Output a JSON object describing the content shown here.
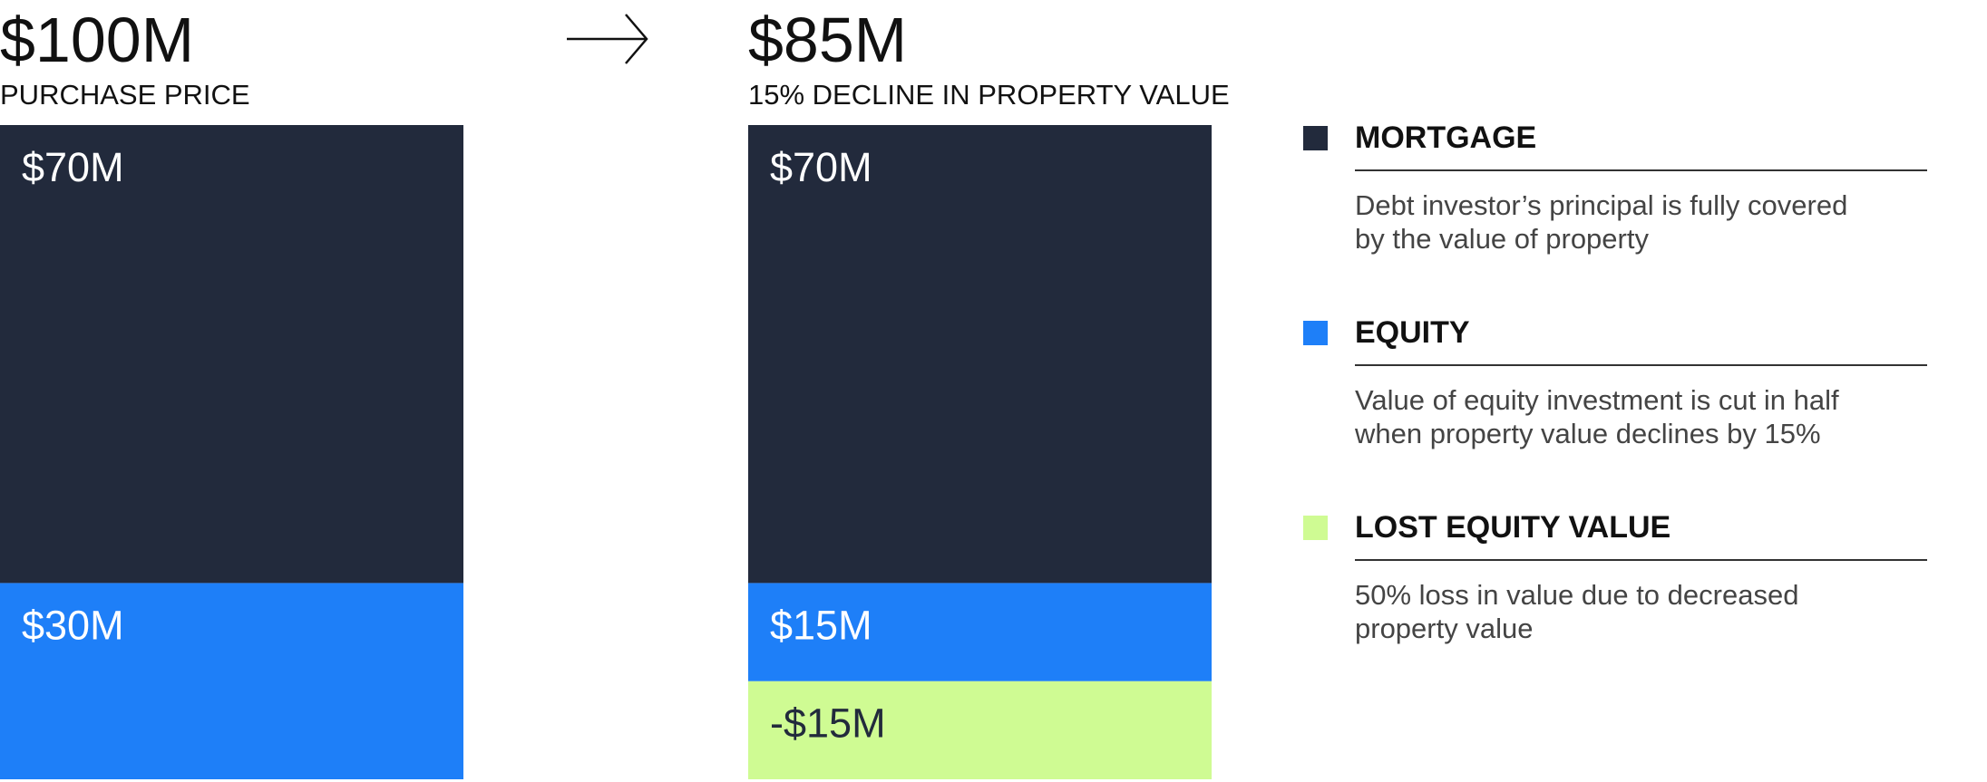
{
  "chart_data": {
    "type": "stacked_bar",
    "categories": [
      "$100M",
      "$85M"
    ],
    "category_subtitles": [
      "PURCHASE PRICE",
      "15% DECLINE IN PROPERTY VALUE"
    ],
    "series": [
      {
        "name": "MORTGAGE",
        "color": "#222a3c",
        "values": [
          70,
          70
        ],
        "value_labels": [
          "$70M",
          "$70M"
        ],
        "description": [
          "Debt investor’s principal is fully covered",
          "by the value of property"
        ]
      },
      {
        "name": "EQUITY",
        "color": "#1e7ff8",
        "values": [
          30,
          15
        ],
        "value_labels": [
          "$30M",
          "$15M"
        ],
        "description": [
          "Value of equity investment is cut in half",
          "when property value declines by 15%"
        ]
      },
      {
        "name": "LOST EQUITY VALUE",
        "color": "#cffb93",
        "values": [
          null,
          -15
        ],
        "value_labels": [
          null,
          "-$15M"
        ],
        "description": [
          "50% loss in value due to decreased",
          "property value"
        ]
      }
    ]
  }
}
